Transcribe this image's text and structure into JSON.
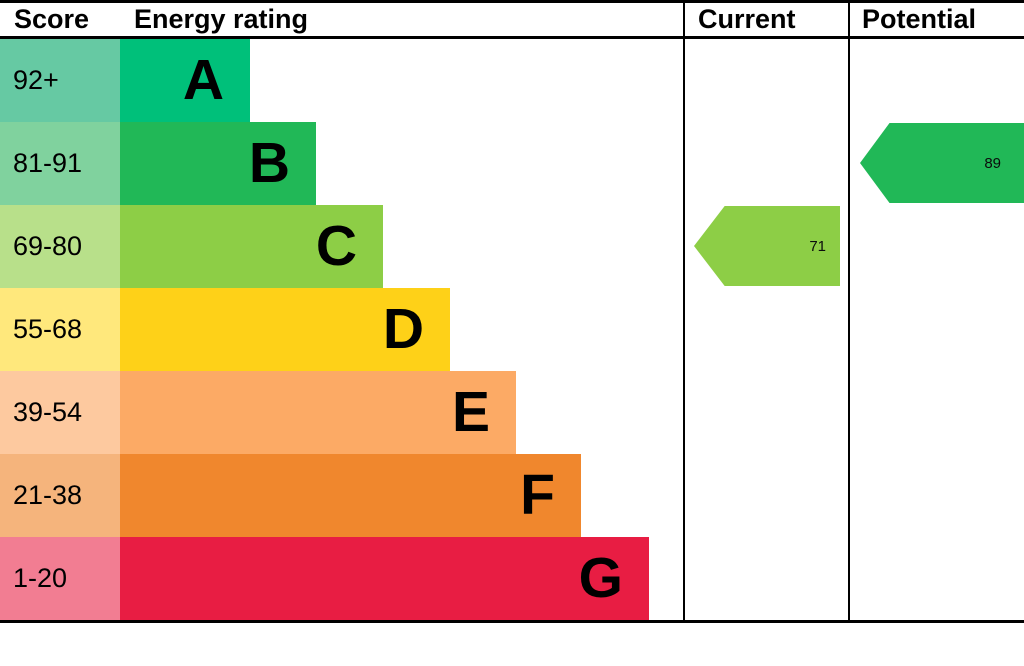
{
  "header": {
    "score": "Score",
    "energy_rating": "Energy rating",
    "current": "Current",
    "potential": "Potential"
  },
  "chart_data": {
    "type": "bar",
    "title": "Energy rating",
    "columns": [
      "Score",
      "Energy rating",
      "Current",
      "Potential"
    ],
    "bands": [
      {
        "letter": "A",
        "score_range": "92+",
        "color": "#00c07a",
        "score_bg": "#66c9a3"
      },
      {
        "letter": "B",
        "score_range": "81-91",
        "color": "#21b857",
        "score_bg": "#80d29e"
      },
      {
        "letter": "C",
        "score_range": "69-80",
        "color": "#8dce46",
        "score_bg": "#b8e08a"
      },
      {
        "letter": "D",
        "score_range": "55-68",
        "color": "#fed118",
        "score_bg": "#ffe87c"
      },
      {
        "letter": "E",
        "score_range": "39-54",
        "color": "#fcaa65",
        "score_bg": "#fdc99f"
      },
      {
        "letter": "F",
        "score_range": "21-38",
        "color": "#f0872d",
        "score_bg": "#f5b47c"
      },
      {
        "letter": "G",
        "score_range": "1-20",
        "color": "#e81d43",
        "score_bg": "#f27d92"
      }
    ],
    "current": {
      "value": 71,
      "band": "C",
      "color": "#8dce46"
    },
    "potential": {
      "value": 89,
      "band": "B",
      "color": "#21b857"
    }
  }
}
